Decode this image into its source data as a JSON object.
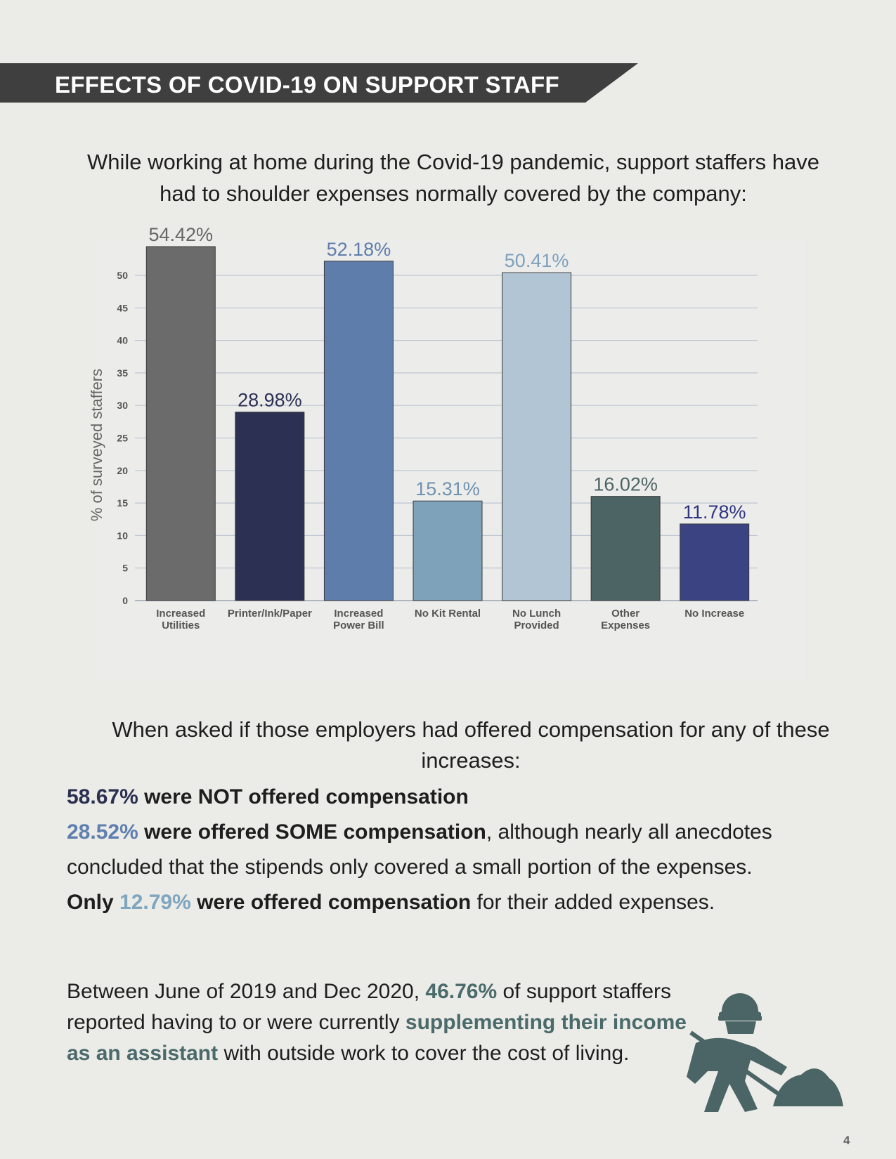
{
  "banner": {
    "title": "EFFECTS OF COVID-19 ON SUPPORT STAFF"
  },
  "intro": {
    "line1": "While working at home during the Covid-19 pandemic, support staffers have",
    "line2": "had to shoulder expenses normally covered by the company:"
  },
  "chart_data": {
    "type": "bar",
    "categories": [
      [
        "Increased",
        "Utilities"
      ],
      [
        "Printer/Ink/Paper"
      ],
      [
        "Increased",
        "Power Bill"
      ],
      [
        "No Kit Rental"
      ],
      [
        "No Lunch",
        "Provided"
      ],
      [
        "Other",
        "Expenses"
      ],
      [
        "No Increase"
      ]
    ],
    "values": [
      54.42,
      28.98,
      52.18,
      15.31,
      50.41,
      16.02,
      11.78
    ],
    "value_labels": [
      "54.42%",
      "28.98%",
      "52.18%",
      "15.31%",
      "50.41%",
      "16.02%",
      "11.78%"
    ],
    "bar_colors": [
      "#6b6b6b",
      "#2c3153",
      "#5f7dab",
      "#7ea2ba",
      "#b1c5d5",
      "#4c6464",
      "#3b4382"
    ],
    "label_colors": [
      "#666666",
      "#2c3153",
      "#5f7dab",
      "#6f93b0",
      "#7ea0bd",
      "#4c6464",
      "#2e3580"
    ],
    "ylabel": "% of surveyed staffers",
    "xlabel": "",
    "title": "",
    "ylim": [
      0,
      50
    ],
    "yticks": [
      0,
      5,
      10,
      15,
      20,
      25,
      30,
      35,
      40,
      45,
      50
    ],
    "grid": true
  },
  "question": {
    "line1": "When asked if those employers had offered compensation for any of these",
    "line2": "increases:"
  },
  "stats": {
    "not_offered_pct": "58.67%",
    "not_offered_text": " were NOT offered compensation",
    "some_pct": "28.52%",
    "some_bold": " were offered SOME compensation",
    "some_rest": ", although nearly all anecdotes",
    "some_line2": "concluded that the stipends only covered a small portion of the expenses.",
    "only_word": "Only ",
    "only_pct": "12.79%",
    "only_bold": " were offered compensation",
    "only_rest": " for their added expenses."
  },
  "bottom": {
    "part1": "Between June of 2019 and Dec 2020, ",
    "pct": "46.76%",
    "part2": " of support staffers reported having to or were currently ",
    "bold": "supplementing their income as an assistant",
    "part3": " with outside work to cover the cost of living.",
    "icon": "construction-worker-shovel-icon"
  },
  "page_number": "4"
}
